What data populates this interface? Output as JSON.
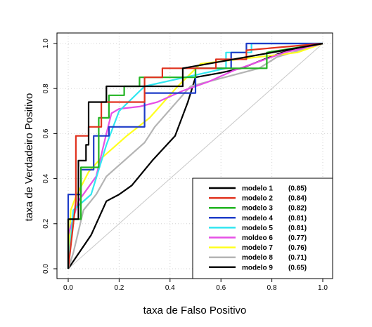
{
  "chart_data": {
    "type": "line",
    "title": "",
    "xlabel": "taxa de Falso Positivo",
    "ylabel": "taxa de Verdadeiro Positivo",
    "xlim": [
      0,
      1
    ],
    "ylim": [
      0,
      1
    ],
    "xticks": [
      "0.0",
      "0.2",
      "0.4",
      "0.6",
      "0.8",
      "1.0"
    ],
    "yticks": [
      "0.0",
      "0.2",
      "0.4",
      "0.6",
      "0.8",
      "1.0"
    ],
    "grid": true,
    "legend_position": "bottom-right",
    "reference_line": {
      "x": [
        0,
        1
      ],
      "y": [
        0,
        1
      ],
      "color": "#c8c8c8"
    },
    "series": [
      {
        "name": "modelo 1",
        "auc": "(0.85)",
        "color": "#000000",
        "x": [
          0,
          0,
          0.04,
          0.04,
          0.07,
          0.07,
          0.08,
          0.08,
          0.15,
          0.15,
          0.45,
          0.45,
          1
        ],
        "y": [
          0,
          0.22,
          0.22,
          0.48,
          0.48,
          0.55,
          0.55,
          0.74,
          0.74,
          0.81,
          0.81,
          0.89,
          1
        ]
      },
      {
        "name": "modelo 2",
        "auc": "(0.84)",
        "color": "#e0321e",
        "x": [
          0,
          0.03,
          0.03,
          0.08,
          0.08,
          0.13,
          0.13,
          0.3,
          0.3,
          0.37,
          0.37,
          0.58,
          0.58,
          0.7,
          0.7,
          1
        ],
        "y": [
          0,
          0.3,
          0.59,
          0.59,
          0.63,
          0.63,
          0.74,
          0.74,
          0.85,
          0.85,
          0.89,
          0.89,
          0.93,
          0.93,
          0.97,
          1
        ]
      },
      {
        "name": "modelo 3",
        "auc": "(0.82)",
        "color": "#22b422",
        "x": [
          0,
          0,
          0.05,
          0.05,
          0.12,
          0.12,
          0.16,
          0.16,
          0.22,
          0.22,
          0.28,
          0.28,
          0.5,
          0.5,
          0.78,
          0.78,
          1
        ],
        "y": [
          0,
          0.22,
          0.22,
          0.45,
          0.45,
          0.67,
          0.67,
          0.77,
          0.77,
          0.81,
          0.81,
          0.85,
          0.85,
          0.89,
          0.89,
          0.96,
          1
        ]
      },
      {
        "name": "modelo 4",
        "auc": "(0.81)",
        "color": "#1e3cc8",
        "x": [
          0,
          0,
          0.05,
          0.05,
          0.1,
          0.1,
          0.16,
          0.16,
          0.3,
          0.3,
          0.5,
          0.5,
          0.64,
          0.64,
          0.7,
          0.7,
          1
        ],
        "y": [
          0,
          0.33,
          0.33,
          0.44,
          0.44,
          0.59,
          0.59,
          0.63,
          0.63,
          0.78,
          0.78,
          0.89,
          0.89,
          0.96,
          0.96,
          1,
          1
        ]
      },
      {
        "name": "modelo 5",
        "auc": "(0.81)",
        "color": "#32e6f0",
        "x": [
          0,
          0.02,
          0.02,
          0.09,
          0.09,
          0.15,
          0.15,
          0.2,
          0.2,
          0.3,
          0.3,
          0.62,
          0.62,
          0.72,
          0.72,
          1
        ],
        "y": [
          0,
          0.26,
          0.26,
          0.33,
          0.33,
          0.55,
          0.55,
          0.7,
          0.7,
          0.81,
          0.81,
          0.89,
          0.96,
          0.96,
          1,
          1
        ]
      },
      {
        "name": "moldeo 6",
        "auc": "(0.77)",
        "color": "#e650e6",
        "x": [
          0,
          0.04,
          0.11,
          0.15,
          0.17,
          0.2,
          0.28,
          0.35,
          0.45,
          0.55,
          0.65,
          0.75,
          0.85,
          1
        ],
        "y": [
          0.15,
          0.3,
          0.41,
          0.6,
          0.69,
          0.71,
          0.72,
          0.74,
          0.79,
          0.83,
          0.88,
          0.92,
          0.96,
          1
        ]
      },
      {
        "name": "modelo 7",
        "auc": "(0.76)",
        "color": "#ffff1e",
        "x": [
          0,
          0.01,
          0.01,
          0.03,
          0.03,
          0.08,
          0.08,
          0.12,
          0.12,
          0.23,
          0.23,
          0.32,
          0.32,
          0.43,
          0.43,
          0.52,
          0.52,
          0.9,
          0.9,
          1
        ],
        "y": [
          0,
          0.26,
          0.26,
          0.32,
          0.32,
          0.43,
          0.43,
          0.48,
          0.48,
          0.59,
          0.59,
          0.67,
          0.67,
          0.81,
          0.81,
          0.91,
          0.91,
          0.96,
          0.96,
          1
        ]
      },
      {
        "name": "modelo 8",
        "auc": "(0.71)",
        "color": "#b4b4b4",
        "x": [
          0,
          0.02,
          0.02,
          0.06,
          0.06,
          0.11,
          0.11,
          0.15,
          0.15,
          0.3,
          0.3,
          0.34,
          0.34,
          0.48,
          0.48,
          0.75,
          0.75,
          0.82,
          0.82,
          1
        ],
        "y": [
          0,
          0.07,
          0.07,
          0.26,
          0.26,
          0.33,
          0.33,
          0.41,
          0.41,
          0.56,
          0.56,
          0.63,
          0.63,
          0.81,
          0.81,
          0.89,
          0.89,
          0.94,
          0.94,
          1
        ]
      },
      {
        "name": "modelo 9",
        "auc": "(0.65)",
        "color": "#000000",
        "x": [
          0,
          0.09,
          0.15,
          0.15,
          0.2,
          0.2,
          0.25,
          0.25,
          0.33,
          0.33,
          0.42,
          0.42,
          0.47,
          0.47,
          0.5,
          0.6,
          0.68,
          0.68,
          0.77,
          0.77,
          0.84,
          0.84,
          1
        ],
        "y": [
          0,
          0.15,
          0.3,
          0.3,
          0.33,
          0.33,
          0.37,
          0.37,
          0.48,
          0.48,
          0.59,
          0.59,
          0.74,
          0.74,
          0.85,
          0.87,
          0.89,
          0.89,
          0.93,
          0.93,
          0.96,
          0.96,
          1
        ]
      }
    ]
  }
}
